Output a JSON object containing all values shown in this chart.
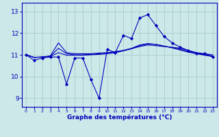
{
  "title": "Graphe des températures (°C)",
  "bg_color": "#cce8e8",
  "grid_color": "#aacccc",
  "line_color": "#0000bb",
  "x_ticks": [
    0,
    1,
    2,
    3,
    4,
    5,
    6,
    7,
    8,
    9,
    10,
    11,
    12,
    13,
    14,
    15,
    16,
    17,
    18,
    19,
    20,
    21,
    22,
    23
  ],
  "ylim": [
    8.6,
    13.4
  ],
  "yticks": [
    9,
    10,
    11,
    12,
    13
  ],
  "line1_x": [
    0,
    1,
    2,
    3,
    4,
    5,
    6,
    7,
    8,
    9,
    10,
    11,
    12,
    13,
    14,
    15,
    16,
    17,
    18,
    19,
    20,
    21,
    22,
    23
  ],
  "line1_y": [
    11.0,
    10.75,
    10.85,
    10.9,
    10.9,
    9.65,
    10.85,
    10.85,
    9.85,
    9.0,
    11.25,
    11.1,
    11.9,
    11.75,
    12.7,
    12.85,
    12.35,
    11.85,
    11.55,
    11.35,
    11.2,
    11.05,
    11.05,
    10.9
  ],
  "line2_x": [
    0,
    1,
    2,
    3,
    4,
    5,
    6,
    7,
    8,
    9,
    10,
    11,
    12,
    13,
    14,
    15,
    16,
    17,
    18,
    19,
    20,
    21,
    22,
    23
  ],
  "line2_y": [
    11.0,
    10.88,
    10.9,
    10.95,
    11.55,
    11.1,
    11.05,
    11.05,
    11.05,
    11.08,
    11.1,
    11.15,
    11.2,
    11.28,
    11.38,
    11.45,
    11.42,
    11.38,
    11.35,
    11.3,
    11.2,
    11.1,
    11.05,
    11.0
  ],
  "line3_x": [
    0,
    1,
    2,
    3,
    4,
    5,
    6,
    7,
    8,
    9,
    10,
    11,
    12,
    13,
    14,
    15,
    16,
    17,
    18,
    19,
    20,
    21,
    22,
    23
  ],
  "line3_y": [
    11.0,
    10.88,
    10.9,
    10.93,
    11.1,
    10.98,
    10.98,
    10.98,
    11.0,
    11.02,
    11.05,
    11.1,
    11.18,
    11.28,
    11.42,
    11.5,
    11.48,
    11.4,
    11.32,
    11.22,
    11.12,
    11.05,
    10.98,
    10.92
  ],
  "line4_x": [
    0,
    1,
    2,
    3,
    4,
    5,
    6,
    7,
    8,
    9,
    10,
    11,
    12,
    13,
    14,
    15,
    16,
    17,
    18,
    19,
    20,
    21,
    22,
    23
  ],
  "line4_y": [
    11.0,
    10.88,
    10.9,
    10.93,
    11.3,
    11.05,
    11.0,
    11.0,
    11.02,
    11.05,
    11.08,
    11.12,
    11.2,
    11.3,
    11.45,
    11.52,
    11.48,
    11.4,
    11.33,
    11.25,
    11.15,
    11.08,
    11.0,
    10.95
  ]
}
